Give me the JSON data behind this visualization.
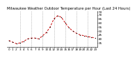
{
  "title": "Milwaukee Weather Outdoor Temperature per Hour (Last 24 Hours)",
  "hours": [
    0,
    1,
    2,
    3,
    4,
    5,
    6,
    7,
    8,
    9,
    10,
    11,
    12,
    13,
    14,
    15,
    16,
    17,
    18,
    19,
    20,
    21,
    22,
    23
  ],
  "temps": [
    38,
    36,
    34,
    35,
    37,
    40,
    41,
    41,
    40,
    44,
    48,
    55,
    65,
    69,
    67,
    60,
    54,
    50,
    47,
    45,
    44,
    43,
    42,
    41
  ],
  "line_color": "#cc0000",
  "marker_color": "#000000",
  "grid_color": "#777777",
  "bg_color": "#ffffff",
  "ylim": [
    30,
    75
  ],
  "yticks": [
    35,
    40,
    45,
    50,
    55,
    60,
    65,
    70,
    74
  ],
  "ytick_labels": [
    "35",
    "40",
    "45",
    "50",
    "55",
    "60",
    "65",
    "70",
    "74"
  ],
  "vgrid_hours": [
    3,
    6,
    9,
    12,
    15,
    18,
    21
  ],
  "title_fontsize": 3.8,
  "tick_fontsize": 3.0,
  "line_width": 0.7,
  "marker_size": 1.2
}
